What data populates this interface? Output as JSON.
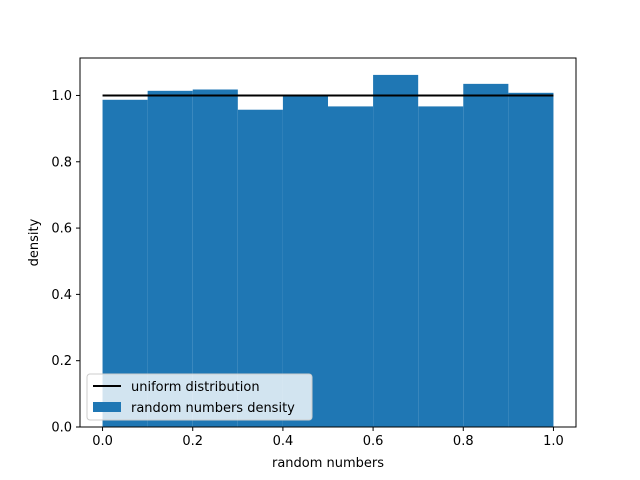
{
  "chart_data": {
    "type": "bar",
    "title": "",
    "xlabel": "random numbers",
    "ylabel": "density",
    "xlim": [
      -0.05,
      1.05
    ],
    "ylim": [
      0.0,
      1.113
    ],
    "xticks": [
      "0.0",
      "0.2",
      "0.4",
      "0.6",
      "0.8",
      "1.0"
    ],
    "xtick_values": [
      0.0,
      0.2,
      0.4,
      0.6,
      0.8,
      1.0
    ],
    "yticks": [
      "0.0",
      "0.2",
      "0.4",
      "0.6",
      "0.8",
      "1.0"
    ],
    "ytick_values": [
      0.0,
      0.2,
      0.4,
      0.6,
      0.8,
      1.0
    ],
    "bin_edges": [
      0.0,
      0.1,
      0.2,
      0.3,
      0.4,
      0.5,
      0.6,
      0.7,
      0.8,
      0.9,
      1.0
    ],
    "series": [
      {
        "name": "random numbers density",
        "kind": "histogram",
        "color": "#1f77b4",
        "values": [
          0.987,
          1.014,
          1.018,
          0.957,
          1.0,
          0.967,
          1.062,
          0.967,
          1.035,
          1.008
        ]
      },
      {
        "name": "uniform distribution",
        "kind": "line",
        "color": "#000000",
        "x": [
          0.0,
          1.0
        ],
        "y": [
          1.0,
          1.0
        ]
      }
    ],
    "legend": {
      "position": "lower-left",
      "entries": [
        "uniform distribution",
        "random numbers density"
      ]
    },
    "grid": false
  }
}
